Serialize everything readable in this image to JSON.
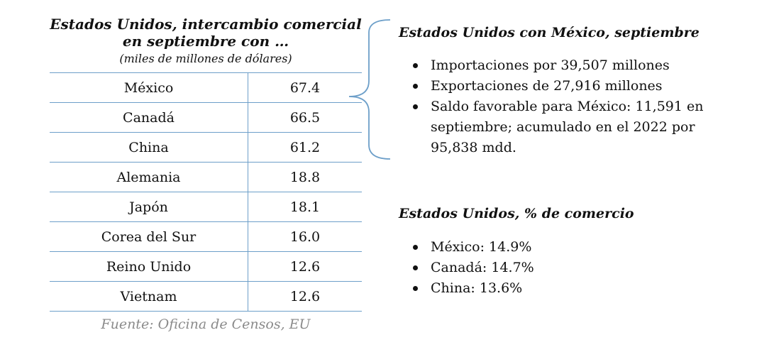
{
  "table": {
    "title": "Estados Unidos, intercambio comercial en septiembre con …",
    "subtitle": "(miles de millones de dólares)",
    "rows": [
      {
        "country": "México",
        "value": "67.4"
      },
      {
        "country": "Canadá",
        "value": "66.5"
      },
      {
        "country": "China",
        "value": "61.2"
      },
      {
        "country": "Alemania",
        "value": "18.8"
      },
      {
        "country": "Japón",
        "value": "18.1"
      },
      {
        "country": "Corea del Sur",
        "value": "16.0"
      },
      {
        "country": "Reino Unido",
        "value": "12.6"
      },
      {
        "country": "Vietnam",
        "value": "12.6"
      }
    ],
    "source": "Fuente: Oficina de Censos, EU"
  },
  "mexico_section": {
    "title": "Estados Unidos con México, septiembre",
    "bullets": [
      "Importaciones por 39,507 millones",
      "Exportaciones de 27,916 millones",
      "Saldo favorable para México:  11,591 en septiembre; acumulado en el 2022 por 95,838 mdd."
    ]
  },
  "share_section": {
    "title": "Estados Unidos, % de comercio",
    "bullets": [
      "México: 14.9%",
      "Canadá: 14.7%",
      "China: 13.6%"
    ]
  },
  "colors": {
    "table_lines": "#6d9fc9",
    "brace": "#6d9fc9",
    "source_text": "#8a8a8a"
  }
}
